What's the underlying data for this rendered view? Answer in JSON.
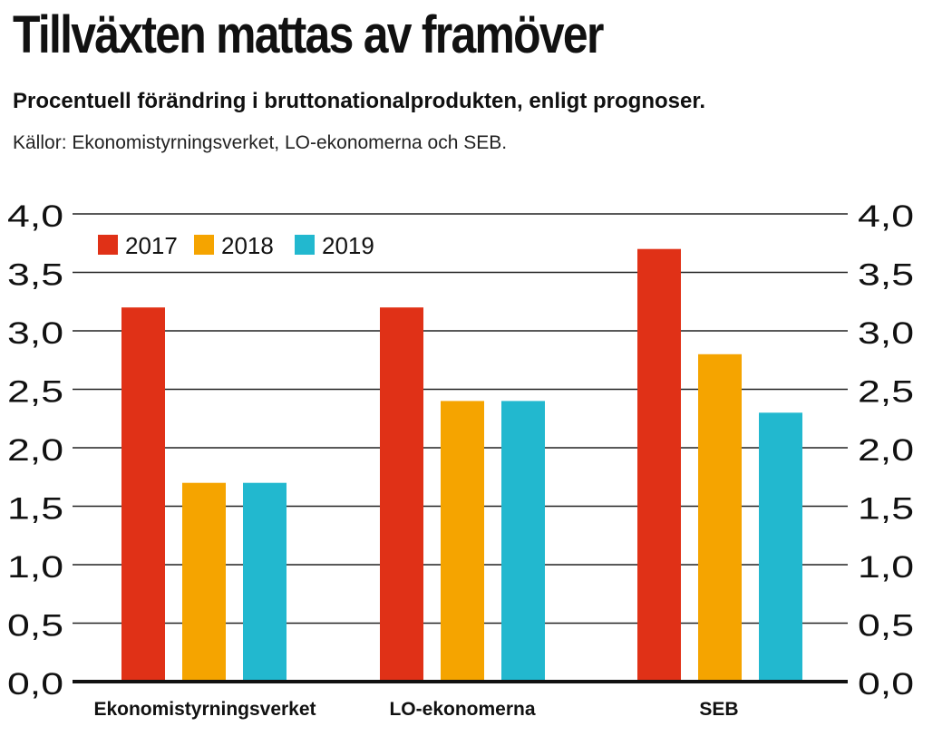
{
  "title": "Tillväxten mattas av framöver",
  "subtitle": "Procentuell förändring i bruttonationalprodukten, enligt prognoser.",
  "source": "Källor: Ekonomistyrningsverket, LO-ekonomerna och SEB.",
  "colors": {
    "2017": "#e03117",
    "2018": "#f5a400",
    "2019": "#22b8cf"
  },
  "chart_data": {
    "type": "bar",
    "categories": [
      "Ekonomistyrningsverket",
      "LO-ekonomerna",
      "SEB"
    ],
    "series": [
      {
        "name": "2017",
        "values": [
          3.2,
          3.2,
          3.7
        ]
      },
      {
        "name": "2018",
        "values": [
          1.7,
          2.4,
          2.8
        ]
      },
      {
        "name": "2019",
        "values": [
          1.7,
          2.4,
          2.3
        ]
      }
    ],
    "ylim": [
      0,
      4
    ],
    "yticks": [
      "0,0",
      "0,5",
      "1,0",
      "1,5",
      "2,0",
      "2,5",
      "3,0",
      "3,5",
      "4,0"
    ],
    "grid": true,
    "legend": "top-left",
    "xlabel": "",
    "ylabel": ""
  }
}
